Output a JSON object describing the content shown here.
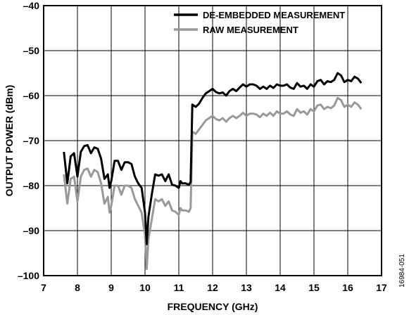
{
  "chart_data": {
    "type": "line",
    "xlabel": "FREQUENCY (GHz)",
    "ylabel": "OUTPUT POWER (dBm)",
    "xlim": [
      7,
      17
    ],
    "ylim": [
      -100,
      -40
    ],
    "xticks": [
      7,
      8,
      9,
      10,
      11,
      12,
      13,
      14,
      15,
      16,
      17
    ],
    "yticks": [
      -40,
      -50,
      -60,
      -70,
      -80,
      -90,
      -100
    ],
    "ytick_labels": [
      "–40",
      "–50",
      "–60",
      "–70",
      "–80",
      "–90",
      "–100"
    ],
    "grid": true,
    "legend_position": "top-right",
    "figure_code": "16984-051",
    "series": [
      {
        "name": "DE-EMBEDDED MEASUREMENT",
        "color": "#000000",
        "points": [
          [
            7.6,
            -72.5
          ],
          [
            7.7,
            -79.5
          ],
          [
            7.8,
            -73.5
          ],
          [
            7.9,
            -72.8
          ],
          [
            8.0,
            -78.0
          ],
          [
            8.1,
            -72.5
          ],
          [
            8.2,
            -71.2
          ],
          [
            8.3,
            -71.0
          ],
          [
            8.4,
            -72.8
          ],
          [
            8.5,
            -71.5
          ],
          [
            8.6,
            -71.8
          ],
          [
            8.7,
            -74.0
          ],
          [
            8.8,
            -78.5
          ],
          [
            8.9,
            -77.5
          ],
          [
            8.95,
            -80.5
          ],
          [
            9.0,
            -79.0
          ],
          [
            9.1,
            -74.5
          ],
          [
            9.2,
            -74.5
          ],
          [
            9.3,
            -76.5
          ],
          [
            9.4,
            -74.8
          ],
          [
            9.5,
            -74.8
          ],
          [
            9.6,
            -75.2
          ],
          [
            9.7,
            -78.0
          ],
          [
            9.8,
            -79.5
          ],
          [
            9.9,
            -80.5
          ],
          [
            10.0,
            -86.0
          ],
          [
            10.05,
            -93.0
          ],
          [
            10.1,
            -87.0
          ],
          [
            10.2,
            -82.0
          ],
          [
            10.3,
            -77.5
          ],
          [
            10.4,
            -77.8
          ],
          [
            10.5,
            -77.5
          ],
          [
            10.6,
            -79.0
          ],
          [
            10.7,
            -77.5
          ],
          [
            10.8,
            -79.8
          ],
          [
            10.9,
            -80.0
          ],
          [
            11.0,
            -80.5
          ],
          [
            11.05,
            -79.0
          ],
          [
            11.1,
            -79.5
          ],
          [
            11.2,
            -79.5
          ],
          [
            11.3,
            -79.8
          ],
          [
            11.35,
            -79.2
          ],
          [
            11.4,
            -62.0
          ],
          [
            11.5,
            -62.5
          ],
          [
            11.6,
            -61.8
          ],
          [
            11.7,
            -60.5
          ],
          [
            11.8,
            -59.5
          ],
          [
            11.9,
            -59.0
          ],
          [
            12.0,
            -58.5
          ],
          [
            12.1,
            -59.2
          ],
          [
            12.2,
            -59.5
          ],
          [
            12.3,
            -59.3
          ],
          [
            12.4,
            -60.0
          ],
          [
            12.5,
            -59.0
          ],
          [
            12.6,
            -58.5
          ],
          [
            12.7,
            -59.0
          ],
          [
            12.8,
            -58.2
          ],
          [
            12.9,
            -57.5
          ],
          [
            13.0,
            -58.0
          ],
          [
            13.1,
            -57.5
          ],
          [
            13.2,
            -57.5
          ],
          [
            13.3,
            -57.8
          ],
          [
            13.4,
            -58.5
          ],
          [
            13.5,
            -58.0
          ],
          [
            13.6,
            -58.5
          ],
          [
            13.7,
            -57.8
          ],
          [
            13.8,
            -58.3
          ],
          [
            13.9,
            -57.5
          ],
          [
            14.0,
            -57.8
          ],
          [
            14.1,
            -57.8
          ],
          [
            14.2,
            -57.5
          ],
          [
            14.3,
            -58.2
          ],
          [
            14.4,
            -58.5
          ],
          [
            14.5,
            -57.2
          ],
          [
            14.6,
            -58.0
          ],
          [
            14.7,
            -57.8
          ],
          [
            14.8,
            -58.5
          ],
          [
            14.9,
            -57.5
          ],
          [
            15.0,
            -58.0
          ],
          [
            15.1,
            -56.8
          ],
          [
            15.2,
            -56.5
          ],
          [
            15.3,
            -57.5
          ],
          [
            15.4,
            -56.8
          ],
          [
            15.5,
            -57.0
          ],
          [
            15.6,
            -56.5
          ],
          [
            15.7,
            -55.0
          ],
          [
            15.8,
            -55.5
          ],
          [
            15.9,
            -57.0
          ],
          [
            16.0,
            -56.5
          ],
          [
            16.1,
            -56.8
          ],
          [
            16.2,
            -55.8
          ],
          [
            16.3,
            -56.2
          ],
          [
            16.4,
            -57.2
          ]
        ]
      },
      {
        "name": "RAW MEASUREMENT",
        "color": "#999999",
        "points": [
          [
            7.6,
            -77.5
          ],
          [
            7.7,
            -84.0
          ],
          [
            7.8,
            -78.5
          ],
          [
            7.9,
            -78.0
          ],
          [
            8.0,
            -83.5
          ],
          [
            8.1,
            -78.0
          ],
          [
            8.2,
            -76.5
          ],
          [
            8.3,
            -76.2
          ],
          [
            8.4,
            -78.0
          ],
          [
            8.5,
            -76.5
          ],
          [
            8.6,
            -77.0
          ],
          [
            8.7,
            -79.5
          ],
          [
            8.8,
            -84.0
          ],
          [
            8.9,
            -82.5
          ],
          [
            8.95,
            -86.0
          ],
          [
            9.0,
            -84.5
          ],
          [
            9.1,
            -80.0
          ],
          [
            9.2,
            -80.0
          ],
          [
            9.3,
            -82.0
          ],
          [
            9.4,
            -80.0
          ],
          [
            9.5,
            -80.0
          ],
          [
            9.6,
            -80.5
          ],
          [
            9.7,
            -83.0
          ],
          [
            9.8,
            -84.5
          ],
          [
            9.9,
            -86.0
          ],
          [
            10.0,
            -91.0
          ],
          [
            10.05,
            -98.5
          ],
          [
            10.1,
            -92.0
          ],
          [
            10.2,
            -87.5
          ],
          [
            10.3,
            -83.0
          ],
          [
            10.4,
            -83.5
          ],
          [
            10.5,
            -83.0
          ],
          [
            10.6,
            -84.5
          ],
          [
            10.7,
            -83.5
          ],
          [
            10.8,
            -85.5
          ],
          [
            10.9,
            -85.8
          ],
          [
            11.0,
            -86.5
          ],
          [
            11.05,
            -85.0
          ],
          [
            11.1,
            -85.5
          ],
          [
            11.2,
            -85.5
          ],
          [
            11.3,
            -85.8
          ],
          [
            11.35,
            -85.0
          ],
          [
            11.4,
            -68.0
          ],
          [
            11.5,
            -68.5
          ],
          [
            11.6,
            -67.5
          ],
          [
            11.7,
            -66.5
          ],
          [
            11.8,
            -65.5
          ],
          [
            11.9,
            -65.0
          ],
          [
            12.0,
            -64.5
          ],
          [
            12.1,
            -65.2
          ],
          [
            12.2,
            -65.5
          ],
          [
            12.3,
            -65.0
          ],
          [
            12.4,
            -65.8
          ],
          [
            12.5,
            -65.0
          ],
          [
            12.6,
            -64.5
          ],
          [
            12.7,
            -65.0
          ],
          [
            12.8,
            -64.5
          ],
          [
            12.9,
            -63.8
          ],
          [
            13.0,
            -64.5
          ],
          [
            13.1,
            -64.0
          ],
          [
            13.2,
            -64.0
          ],
          [
            13.3,
            -64.2
          ],
          [
            13.4,
            -64.8
          ],
          [
            13.5,
            -64.0
          ],
          [
            13.6,
            -64.5
          ],
          [
            13.7,
            -63.8
          ],
          [
            13.8,
            -64.5
          ],
          [
            13.9,
            -63.5
          ],
          [
            14.0,
            -64.0
          ],
          [
            14.1,
            -64.0
          ],
          [
            14.2,
            -63.5
          ],
          [
            14.3,
            -64.2
          ],
          [
            14.4,
            -64.5
          ],
          [
            14.5,
            -63.0
          ],
          [
            14.6,
            -63.8
          ],
          [
            14.7,
            -63.5
          ],
          [
            14.8,
            -64.2
          ],
          [
            14.9,
            -63.0
          ],
          [
            15.0,
            -63.5
          ],
          [
            15.1,
            -62.2
          ],
          [
            15.2,
            -62.0
          ],
          [
            15.3,
            -63.0
          ],
          [
            15.4,
            -62.5
          ],
          [
            15.5,
            -62.8
          ],
          [
            15.6,
            -62.2
          ],
          [
            15.7,
            -60.5
          ],
          [
            15.8,
            -61.0
          ],
          [
            15.9,
            -62.5
          ],
          [
            16.0,
            -62.0
          ],
          [
            16.1,
            -62.5
          ],
          [
            16.2,
            -61.5
          ],
          [
            16.3,
            -62.0
          ],
          [
            16.4,
            -63.0
          ]
        ]
      }
    ]
  }
}
